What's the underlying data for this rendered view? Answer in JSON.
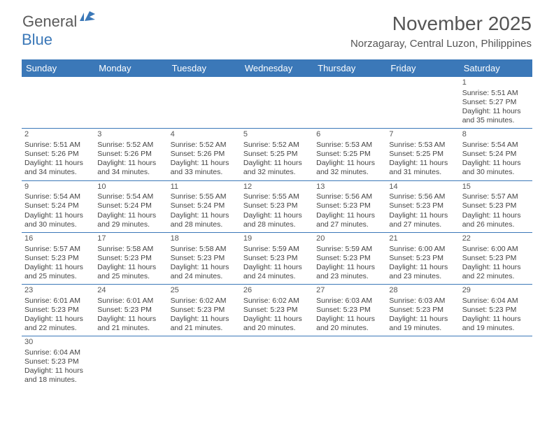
{
  "logo": {
    "general": "General",
    "blue": "Blue"
  },
  "title": "November 2025",
  "subtitle": "Norzagaray, Central Luzon, Philippines",
  "colors": {
    "header_bg": "#3b78b8",
    "header_text": "#ffffff",
    "text": "#444444",
    "title_text": "#555555",
    "border": "#3b78b8"
  },
  "weekdays": [
    "Sunday",
    "Monday",
    "Tuesday",
    "Wednesday",
    "Thursday",
    "Friday",
    "Saturday"
  ],
  "weeks": [
    [
      null,
      null,
      null,
      null,
      null,
      null,
      {
        "n": "1",
        "sr": "Sunrise: 5:51 AM",
        "ss": "Sunset: 5:27 PM",
        "d1": "Daylight: 11 hours",
        "d2": "and 35 minutes."
      }
    ],
    [
      {
        "n": "2",
        "sr": "Sunrise: 5:51 AM",
        "ss": "Sunset: 5:26 PM",
        "d1": "Daylight: 11 hours",
        "d2": "and 34 minutes."
      },
      {
        "n": "3",
        "sr": "Sunrise: 5:52 AM",
        "ss": "Sunset: 5:26 PM",
        "d1": "Daylight: 11 hours",
        "d2": "and 34 minutes."
      },
      {
        "n": "4",
        "sr": "Sunrise: 5:52 AM",
        "ss": "Sunset: 5:26 PM",
        "d1": "Daylight: 11 hours",
        "d2": "and 33 minutes."
      },
      {
        "n": "5",
        "sr": "Sunrise: 5:52 AM",
        "ss": "Sunset: 5:25 PM",
        "d1": "Daylight: 11 hours",
        "d2": "and 32 minutes."
      },
      {
        "n": "6",
        "sr": "Sunrise: 5:53 AM",
        "ss": "Sunset: 5:25 PM",
        "d1": "Daylight: 11 hours",
        "d2": "and 32 minutes."
      },
      {
        "n": "7",
        "sr": "Sunrise: 5:53 AM",
        "ss": "Sunset: 5:25 PM",
        "d1": "Daylight: 11 hours",
        "d2": "and 31 minutes."
      },
      {
        "n": "8",
        "sr": "Sunrise: 5:54 AM",
        "ss": "Sunset: 5:24 PM",
        "d1": "Daylight: 11 hours",
        "d2": "and 30 minutes."
      }
    ],
    [
      {
        "n": "9",
        "sr": "Sunrise: 5:54 AM",
        "ss": "Sunset: 5:24 PM",
        "d1": "Daylight: 11 hours",
        "d2": "and 30 minutes."
      },
      {
        "n": "10",
        "sr": "Sunrise: 5:54 AM",
        "ss": "Sunset: 5:24 PM",
        "d1": "Daylight: 11 hours",
        "d2": "and 29 minutes."
      },
      {
        "n": "11",
        "sr": "Sunrise: 5:55 AM",
        "ss": "Sunset: 5:24 PM",
        "d1": "Daylight: 11 hours",
        "d2": "and 28 minutes."
      },
      {
        "n": "12",
        "sr": "Sunrise: 5:55 AM",
        "ss": "Sunset: 5:23 PM",
        "d1": "Daylight: 11 hours",
        "d2": "and 28 minutes."
      },
      {
        "n": "13",
        "sr": "Sunrise: 5:56 AM",
        "ss": "Sunset: 5:23 PM",
        "d1": "Daylight: 11 hours",
        "d2": "and 27 minutes."
      },
      {
        "n": "14",
        "sr": "Sunrise: 5:56 AM",
        "ss": "Sunset: 5:23 PM",
        "d1": "Daylight: 11 hours",
        "d2": "and 27 minutes."
      },
      {
        "n": "15",
        "sr": "Sunrise: 5:57 AM",
        "ss": "Sunset: 5:23 PM",
        "d1": "Daylight: 11 hours",
        "d2": "and 26 minutes."
      }
    ],
    [
      {
        "n": "16",
        "sr": "Sunrise: 5:57 AM",
        "ss": "Sunset: 5:23 PM",
        "d1": "Daylight: 11 hours",
        "d2": "and 25 minutes."
      },
      {
        "n": "17",
        "sr": "Sunrise: 5:58 AM",
        "ss": "Sunset: 5:23 PM",
        "d1": "Daylight: 11 hours",
        "d2": "and 25 minutes."
      },
      {
        "n": "18",
        "sr": "Sunrise: 5:58 AM",
        "ss": "Sunset: 5:23 PM",
        "d1": "Daylight: 11 hours",
        "d2": "and 24 minutes."
      },
      {
        "n": "19",
        "sr": "Sunrise: 5:59 AM",
        "ss": "Sunset: 5:23 PM",
        "d1": "Daylight: 11 hours",
        "d2": "and 24 minutes."
      },
      {
        "n": "20",
        "sr": "Sunrise: 5:59 AM",
        "ss": "Sunset: 5:23 PM",
        "d1": "Daylight: 11 hours",
        "d2": "and 23 minutes."
      },
      {
        "n": "21",
        "sr": "Sunrise: 6:00 AM",
        "ss": "Sunset: 5:23 PM",
        "d1": "Daylight: 11 hours",
        "d2": "and 23 minutes."
      },
      {
        "n": "22",
        "sr": "Sunrise: 6:00 AM",
        "ss": "Sunset: 5:23 PM",
        "d1": "Daylight: 11 hours",
        "d2": "and 22 minutes."
      }
    ],
    [
      {
        "n": "23",
        "sr": "Sunrise: 6:01 AM",
        "ss": "Sunset: 5:23 PM",
        "d1": "Daylight: 11 hours",
        "d2": "and 22 minutes."
      },
      {
        "n": "24",
        "sr": "Sunrise: 6:01 AM",
        "ss": "Sunset: 5:23 PM",
        "d1": "Daylight: 11 hours",
        "d2": "and 21 minutes."
      },
      {
        "n": "25",
        "sr": "Sunrise: 6:02 AM",
        "ss": "Sunset: 5:23 PM",
        "d1": "Daylight: 11 hours",
        "d2": "and 21 minutes."
      },
      {
        "n": "26",
        "sr": "Sunrise: 6:02 AM",
        "ss": "Sunset: 5:23 PM",
        "d1": "Daylight: 11 hours",
        "d2": "and 20 minutes."
      },
      {
        "n": "27",
        "sr": "Sunrise: 6:03 AM",
        "ss": "Sunset: 5:23 PM",
        "d1": "Daylight: 11 hours",
        "d2": "and 20 minutes."
      },
      {
        "n": "28",
        "sr": "Sunrise: 6:03 AM",
        "ss": "Sunset: 5:23 PM",
        "d1": "Daylight: 11 hours",
        "d2": "and 19 minutes."
      },
      {
        "n": "29",
        "sr": "Sunrise: 6:04 AM",
        "ss": "Sunset: 5:23 PM",
        "d1": "Daylight: 11 hours",
        "d2": "and 19 minutes."
      }
    ],
    [
      {
        "n": "30",
        "sr": "Sunrise: 6:04 AM",
        "ss": "Sunset: 5:23 PM",
        "d1": "Daylight: 11 hours",
        "d2": "and 18 minutes."
      },
      null,
      null,
      null,
      null,
      null,
      null
    ]
  ]
}
